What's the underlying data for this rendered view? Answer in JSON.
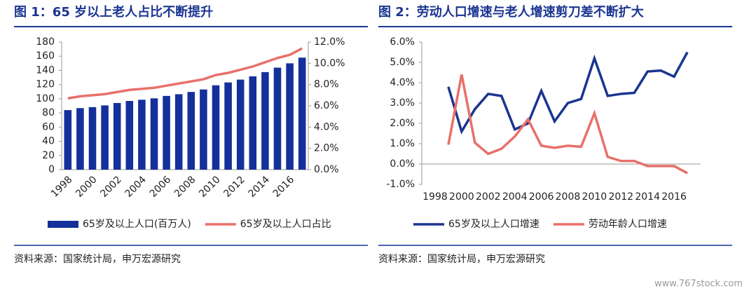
{
  "chart_data": [
    {
      "type": "bar",
      "title": "图 1：65 岁以上老人占比不断提升",
      "categories": [
        "1998",
        null,
        "2000",
        null,
        "2002",
        null,
        "2004",
        null,
        "2006",
        null,
        "2008",
        null,
        "2010",
        null,
        "2012",
        null,
        "2014",
        null,
        "2016",
        null
      ],
      "series": [
        {
          "name": "65岁及以上人口(百万人)",
          "type": "bar",
          "color": "#14309a",
          "values": [
            84,
            86.8,
            88.2,
            90.6,
            94,
            96.9,
            98.6,
            100.6,
            104,
            106.4,
            109.6,
            113.1,
            119,
            123,
            127,
            131.6,
            137.6,
            143.9,
            150,
            158
          ]
        },
        {
          "name": "65岁及以上人口占比",
          "type": "line",
          "axis": "y2",
          "color": "#e8706a",
          "values": [
            6.7,
            6.9,
            7.0,
            7.1,
            7.3,
            7.5,
            7.6,
            7.7,
            7.9,
            8.1,
            8.3,
            8.5,
            8.9,
            9.1,
            9.4,
            9.7,
            10.1,
            10.5,
            10.8,
            11.4
          ]
        }
      ],
      "ylim": [
        0,
        180
      ],
      "yticks": [
        0,
        20,
        40,
        60,
        80,
        100,
        120,
        140,
        160,
        180
      ],
      "y2lim": [
        0,
        12
      ],
      "y2ticks": [
        {
          "value": 0,
          "label": "0.0%"
        },
        {
          "value": 2,
          "label": "2.0%"
        },
        {
          "value": 4,
          "label": "4.0%"
        },
        {
          "value": 6,
          "label": "6.0%"
        },
        {
          "value": 8,
          "label": "8.0%"
        },
        {
          "value": 10,
          "label": "10.0%"
        },
        {
          "value": 12,
          "label": "12.0%"
        }
      ],
      "source": "资料来源：国家统计局，申万宏源研究"
    },
    {
      "type": "line",
      "title": "图 2：劳动人口增速与老人增速剪刀差不断扩大",
      "x": [
        1999,
        2000,
        2001,
        2002,
        2003,
        2004,
        2005,
        2006,
        2007,
        2008,
        2009,
        2010,
        2011,
        2012,
        2013,
        2014,
        2015,
        2016,
        2017
      ],
      "series": [
        {
          "name": "65岁及以上人口增速",
          "color": "#1a3590",
          "values": [
            3.8,
            1.6,
            2.7,
            3.45,
            3.35,
            1.7,
            2.0,
            3.6,
            2.1,
            3.0,
            3.2,
            5.2,
            3.35,
            3.45,
            3.5,
            4.55,
            4.6,
            4.3,
            5.5
          ]
        },
        {
          "name": "劳动年龄人口增速",
          "color": "#e8706a",
          "values": [
            0.95,
            4.4,
            1.05,
            0.5,
            0.75,
            1.35,
            2.2,
            0.9,
            0.8,
            0.9,
            0.85,
            2.5,
            0.35,
            0.15,
            0.15,
            -0.1,
            -0.1,
            -0.1,
            -0.45
          ]
        }
      ],
      "xlim": [
        1997,
        2018
      ],
      "xticks": [
        1998,
        2000,
        2002,
        2004,
        2006,
        2008,
        2010,
        2012,
        2014,
        2016
      ],
      "ylim": [
        -1,
        6
      ],
      "yticks": [
        {
          "value": -1,
          "label": "-1.0%"
        },
        {
          "value": 0,
          "label": "0.0%"
        },
        {
          "value": 1,
          "label": "1.0%"
        },
        {
          "value": 2,
          "label": "2.0%"
        },
        {
          "value": 3,
          "label": "3.0%"
        },
        {
          "value": 4,
          "label": "4.0%"
        },
        {
          "value": 5,
          "label": "5.0%"
        },
        {
          "value": 6,
          "label": "6.0%"
        }
      ],
      "source": "资料来源：国家统计局，申万宏源研究"
    }
  ],
  "watermark": "www.767stock.com"
}
